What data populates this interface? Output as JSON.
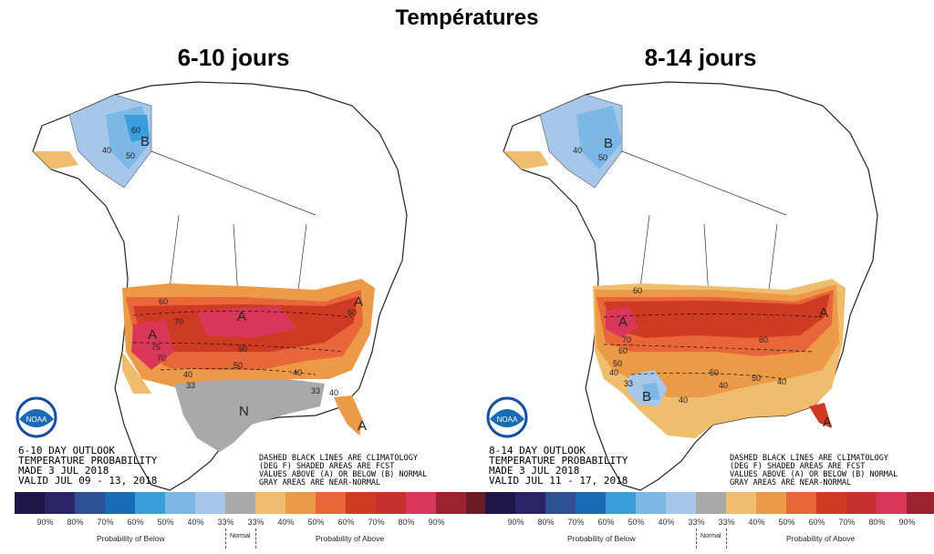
{
  "title": "Températures",
  "panels": [
    {
      "heading": "6-10 jours",
      "caption_lines": [
        "6-10 DAY OUTLOOK",
        "TEMPERATURE PROBABILITY",
        "MADE  3 JUL 2018",
        "VALID  JUL 09 - 13, 2018"
      ],
      "notes_lines": [
        "DASHED BLACK LINES ARE CLIMATOLOGY",
        "(DEG F) SHADED AREAS ARE FCST",
        "VALUES ABOVE (A) OR BELOW (B) NORMAL",
        "GRAY AREAS ARE NEAR-NORMAL"
      ],
      "region_letters": [
        "A",
        "A",
        "A",
        "A",
        "N",
        "B"
      ],
      "contour_labels": [
        "40",
        "50",
        "60",
        "60",
        "70",
        "75",
        "70",
        "60",
        "50",
        "50",
        "40",
        "33",
        "40",
        "33",
        "40"
      ]
    },
    {
      "heading": "8-14 jours",
      "caption_lines": [
        "8-14 DAY OUTLOOK",
        "TEMPERATURE PROBABILITY",
        "MADE  3 JUL 2018",
        "VALID  JUL 11 - 17, 2018"
      ],
      "notes_lines": [
        "DASHED BLACK LINES ARE CLIMATOLOGY",
        "(DEG F) SHADED AREAS ARE FCST",
        "VALUES ABOVE (A) OR BELOW (B) NORMAL",
        "GRAY AREAS ARE NEAR-NORMAL"
      ],
      "region_letters": [
        "A",
        "A",
        "A",
        "B",
        "B"
      ],
      "contour_labels": [
        "40",
        "50",
        "60",
        "70",
        "60",
        "50",
        "40",
        "33",
        "60",
        "50",
        "40",
        "40",
        "50",
        "40"
      ]
    }
  ],
  "legend": {
    "colors": [
      "#1f1846",
      "#2c2464",
      "#2d4f93",
      "#1a6bb5",
      "#3a9ddc",
      "#7db7e6",
      "#a7c7ea",
      "#a9a9a9",
      "#eebd6d",
      "#ec9a48",
      "#e8673a",
      "#cf3a25",
      "#c5312e",
      "#d9375a",
      "#9b2330",
      "#6a1c24"
    ],
    "percents": [
      "90%",
      "80%",
      "70%",
      "60%",
      "50%",
      "40%",
      "33%",
      "33%",
      "40%",
      "50%",
      "60%",
      "70%",
      "80%",
      "90%"
    ],
    "below_label": "Probability of Below",
    "normal_label": "Normal",
    "above_label": "Probability of Above"
  },
  "logo_text": "NOAA"
}
